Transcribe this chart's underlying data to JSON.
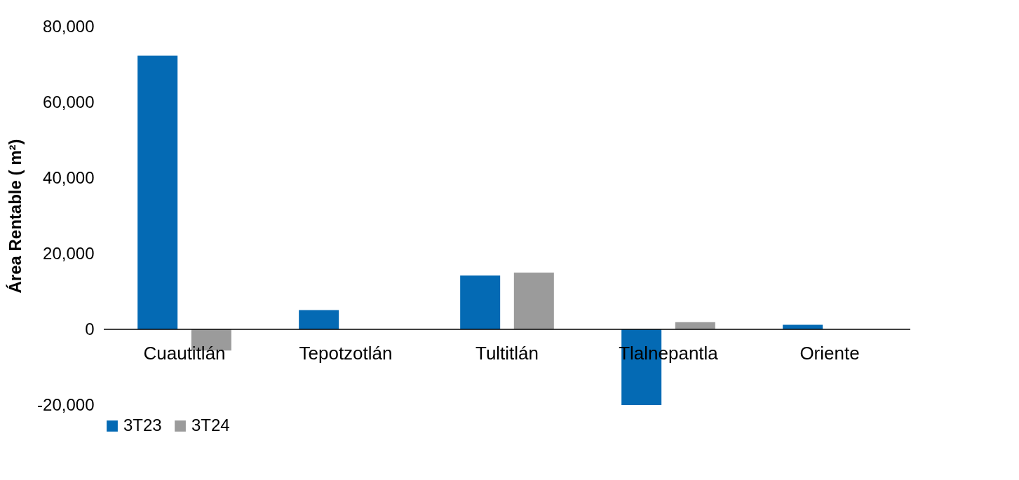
{
  "chart_data": {
    "type": "bar",
    "ylabel": "Área Rentable ( m²)",
    "categories": [
      "Cuautitlán",
      "Tepotzotlán",
      "Tultitlán",
      "Tlalnepantla",
      "Oriente"
    ],
    "series": [
      {
        "name": "3T23",
        "color": "#046ab4",
        "values": [
          72300,
          5100,
          14200,
          -20000,
          1200
        ]
      },
      {
        "name": "3T24",
        "color": "#9b9b9b",
        "values": [
          -5600,
          0,
          15000,
          1900,
          0
        ]
      }
    ],
    "ylim": [
      -20000,
      80000
    ],
    "yticks": [
      {
        "value": -20000,
        "label": "-20,000"
      },
      0,
      {
        "value": 20000,
        "label": "20,000"
      },
      {
        "value": 40000,
        "label": "40,000"
      },
      {
        "value": 60000,
        "label": "60,000"
      },
      {
        "value": 80000,
        "label": "80,000"
      }
    ],
    "grid": false,
    "legend": "bottom"
  }
}
